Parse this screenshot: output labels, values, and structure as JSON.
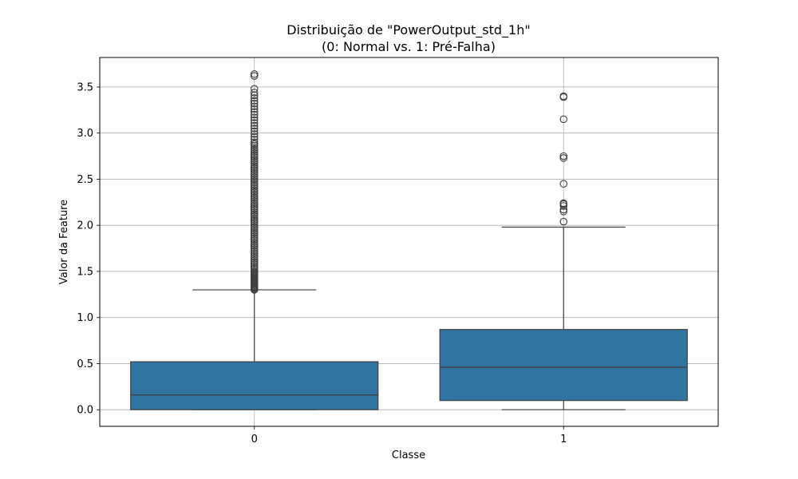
{
  "chart_data": {
    "type": "box",
    "title": "Distribuição de \"PowerOutput_std_1h\"",
    "subtitle": "(0: Normal vs. 1: Pré-Falha)",
    "xlabel": "Classe",
    "ylabel": "Valor da Feature",
    "categories": [
      "0",
      "1"
    ],
    "y_ticks": [
      "0.0",
      "0.5",
      "1.0",
      "1.5",
      "2.0",
      "2.5",
      "3.0",
      "3.5"
    ],
    "ylim": [
      -0.18,
      3.82
    ],
    "grid": true,
    "box_color": "#3274a1",
    "boxes": [
      {
        "category": "0",
        "whisker_low": 0.0,
        "q1": 0.0,
        "median": 0.16,
        "q3": 0.52,
        "whisker_high": 1.3,
        "outliers": [
          1.3,
          1.31,
          1.32,
          1.33,
          1.34,
          1.35,
          1.36,
          1.37,
          1.38,
          1.39,
          1.4,
          1.41,
          1.42,
          1.43,
          1.44,
          1.45,
          1.46,
          1.47,
          1.48,
          1.49,
          1.5,
          1.52,
          1.54,
          1.56,
          1.58,
          1.6,
          1.62,
          1.64,
          1.66,
          1.68,
          1.7,
          1.72,
          1.74,
          1.76,
          1.78,
          1.8,
          1.82,
          1.84,
          1.86,
          1.88,
          1.9,
          1.92,
          1.94,
          1.96,
          1.98,
          2.0,
          2.02,
          2.04,
          2.06,
          2.08,
          2.1,
          2.12,
          2.14,
          2.16,
          2.18,
          2.2,
          2.22,
          2.24,
          2.26,
          2.28,
          2.3,
          2.32,
          2.34,
          2.36,
          2.38,
          2.4,
          2.42,
          2.44,
          2.46,
          2.48,
          2.5,
          2.52,
          2.54,
          2.56,
          2.58,
          2.6,
          2.62,
          2.64,
          2.66,
          2.68,
          2.7,
          2.72,
          2.74,
          2.76,
          2.78,
          2.8,
          2.82,
          2.84,
          2.86,
          2.88,
          2.9,
          2.93,
          2.96,
          2.99,
          3.02,
          3.05,
          3.08,
          3.11,
          3.14,
          3.17,
          3.2,
          3.23,
          3.26,
          3.29,
          3.32,
          3.35,
          3.38,
          3.41,
          3.44,
          3.48,
          3.62,
          3.64
        ]
      },
      {
        "category": "1",
        "whisker_low": 0.0,
        "q1": 0.1,
        "median": 0.46,
        "q3": 0.87,
        "whisker_high": 1.98,
        "outliers": [
          2.04,
          2.15,
          2.17,
          2.21,
          2.23,
          2.24,
          2.45,
          2.73,
          2.75,
          3.15,
          3.39,
          3.4
        ]
      }
    ]
  }
}
